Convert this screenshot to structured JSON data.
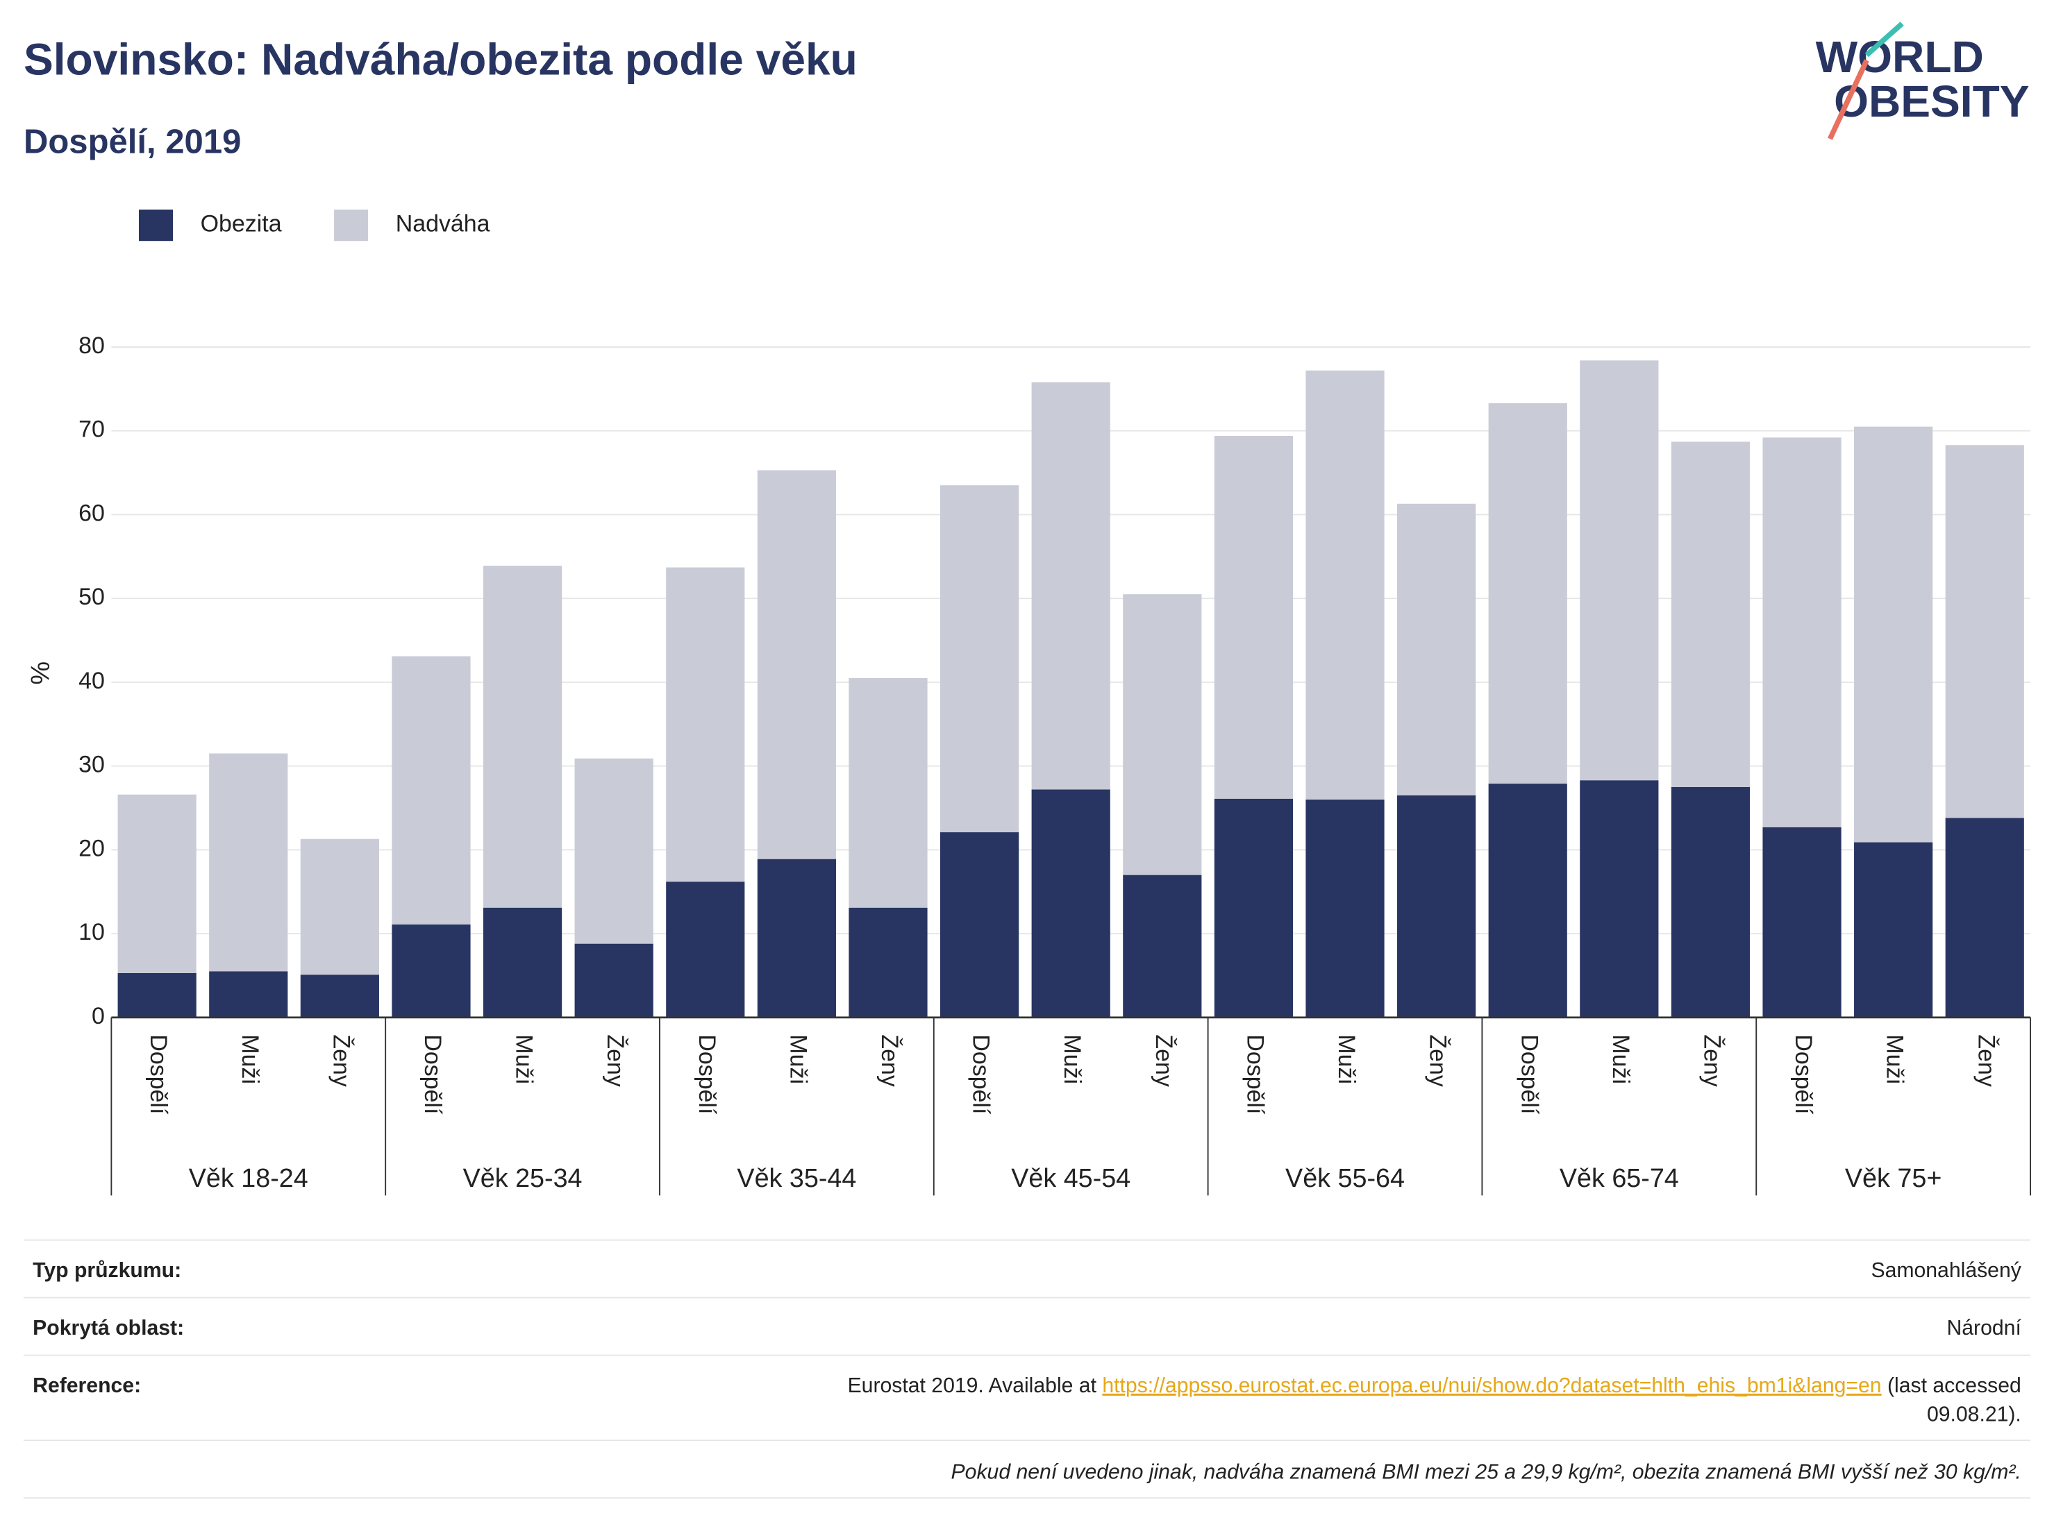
{
  "chart_data": {
    "type": "stacked_bar",
    "title": "Slovinsko: Nadváha/obezita podle věku",
    "subtitle": "Dospělí, 2019",
    "y_label": "%",
    "categories": [
      "Dospělí",
      "Muži",
      "Ženy",
      "Dospělí",
      "Muži",
      "Ženy",
      "Dospělí",
      "Muži",
      "Ženy",
      "Dospělí",
      "Muži",
      "Ženy",
      "Dospělí",
      "Muži",
      "Ženy",
      "Dospělí",
      "Muži",
      "Ženy",
      "Dospělí",
      "Muži",
      "Ženy"
    ],
    "groups": [
      "Věk 18-24",
      "Věk 25-34",
      "Věk 35-44",
      "Věk 45-54",
      "Věk 55-64",
      "Věk 65-74",
      "Věk 75+"
    ],
    "series": [
      {
        "name": "Obezita",
        "color": "#283562",
        "values": [
          5.3,
          5.5,
          5.1,
          11.1,
          13.1,
          8.8,
          16.2,
          18.9,
          13.1,
          22.1,
          27.2,
          17.0,
          26.1,
          26.0,
          26.5,
          27.9,
          28.3,
          27.5,
          22.7,
          20.9,
          23.8
        ]
      },
      {
        "name": "Nadváha",
        "color": "#c9cbd7",
        "values": [
          21.3,
          26.0,
          16.2,
          32.0,
          40.8,
          22.1,
          37.5,
          46.4,
          27.4,
          41.4,
          48.6,
          33.5,
          43.3,
          51.2,
          34.8,
          45.4,
          50.1,
          41.2,
          46.5,
          49.6,
          44.5
        ]
      }
    ],
    "ylim": [
      0,
      80
    ],
    "yticks": [
      0,
      10,
      20,
      30,
      40,
      50,
      60,
      70,
      80
    ],
    "grid": true,
    "legend": "top-left"
  },
  "logo": {
    "line1": "WORLD",
    "line2": "OBESITY"
  },
  "info": [
    {
      "label": "Typ průzkumu:",
      "value": "Samonahlášený"
    },
    {
      "label": "Pokrytá oblast:",
      "value": "Národní"
    }
  ],
  "reference": {
    "label": "Reference:",
    "text": "Eurostat 2019. Available at",
    "link": "https://appsso.eurostat.ec.europa.eu/nui/show.do?dataset=hlth_ehis_bm1i&lang=en",
    "after": "(last accessed",
    "after_line2": "09.08.21)."
  },
  "footnote": "Pokud není uvedeno jinak, nadváha znamená BMI mezi 25 a 29,9 kg/m², obezita znamená BMI vyšší než 30 kg/m²."
}
